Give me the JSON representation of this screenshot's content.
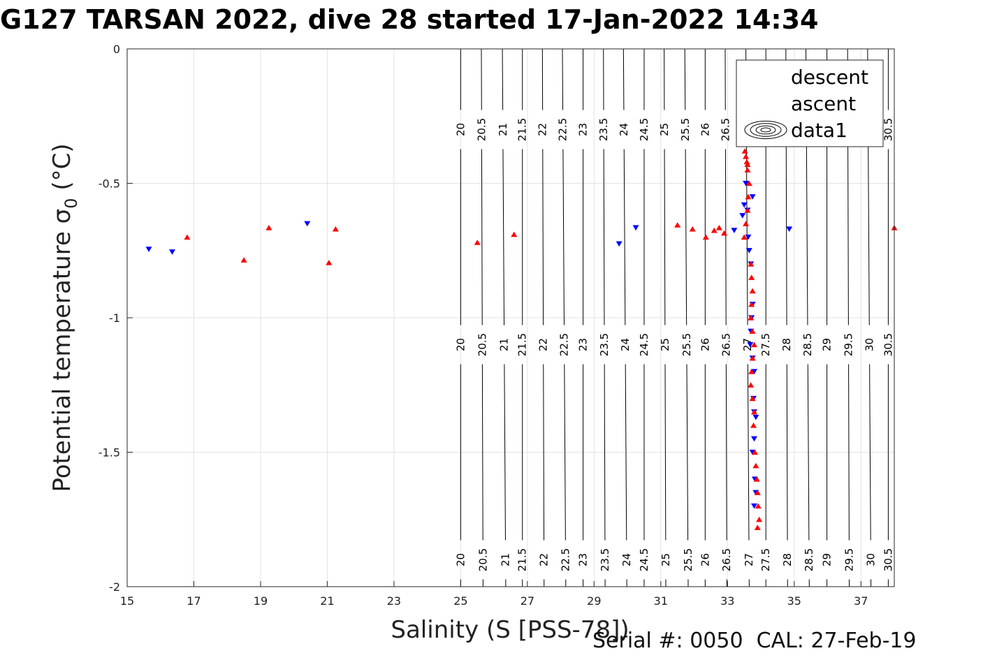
{
  "title": "G127 TARSAN 2022, dive 28 started 17-Jan-2022 14:34",
  "footer": "Serial #: 0050  CAL: 27-Feb-19",
  "chart_data": {
    "type": "scatter",
    "xlabel": "Salinity (S [PSS-78])",
    "ylabel_main": "Potential temperature σ",
    "ylabel_sub": "0",
    "ylabel_unit": " (°C)",
    "xlim": [
      15,
      38
    ],
    "ylim": [
      -2,
      0
    ],
    "xticks": [
      15,
      17,
      19,
      21,
      23,
      25,
      27,
      29,
      31,
      33,
      35,
      37
    ],
    "yticks": [
      0,
      -0.5,
      -1,
      -1.5,
      -2
    ],
    "ytick_labels": [
      "0",
      "-0.5",
      "-1",
      "-1.5",
      "-2"
    ],
    "grid": true,
    "legend_position": "top-right",
    "legend": [
      {
        "label": "descent",
        "marker": "triangle-down",
        "color": "#0000ff"
      },
      {
        "label": "ascent",
        "marker": "triangle-up",
        "color": "#ff0000"
      },
      {
        "label": "data1",
        "marker": "contour",
        "color": "#000000"
      }
    ],
    "contours": {
      "levels": [
        20,
        20.5,
        21,
        21.5,
        22,
        22.5,
        23,
        23.5,
        24,
        24.5,
        25,
        25.5,
        26,
        26.5,
        27,
        27.5,
        28,
        28.5,
        29,
        29.5,
        30,
        30.5
      ],
      "salinity_at_level": [
        25.0,
        25.62,
        26.25,
        26.85,
        27.45,
        28.05,
        28.67,
        29.28,
        29.88,
        30.5,
        31.1,
        31.72,
        32.33,
        32.93,
        33.55,
        34.15,
        34.75,
        35.35,
        35.98,
        36.6,
        37.2,
        37.82
      ],
      "label_rows": [
        -0.3,
        -1.1,
        -1.9
      ],
      "top_row_hidden": [
        27,
        27.5,
        28,
        28.5,
        29,
        29.5,
        30
      ]
    },
    "series": [
      {
        "name": "descent",
        "color": "#0000ff",
        "marker": "triangle-down",
        "x": [
          15.65,
          16.35,
          20.4,
          29.75,
          30.25,
          33.2,
          33.45,
          33.5,
          33.55,
          33.6,
          33.62,
          33.65,
          33.7,
          33.75,
          33.72,
          33.7,
          33.68,
          33.75,
          33.8,
          33.78,
          33.8,
          33.85,
          33.8,
          33.75,
          33.82,
          33.85,
          33.8,
          34.85,
          33.75
        ],
        "y": [
          -0.745,
          -0.755,
          -0.65,
          -0.725,
          -0.665,
          -0.675,
          -0.62,
          -0.58,
          -0.5,
          -0.6,
          -0.7,
          -0.75,
          -0.8,
          -0.95,
          -1.0,
          -1.05,
          -1.1,
          -1.15,
          -1.2,
          -1.3,
          -1.35,
          -1.37,
          -1.45,
          -1.5,
          -1.6,
          -1.65,
          -1.7,
          -0.67,
          -0.55
        ]
      },
      {
        "name": "ascent",
        "color": "#ff0000",
        "marker": "triangle-up",
        "x": [
          16.8,
          18.5,
          19.25,
          21.05,
          21.25,
          25.5,
          26.6,
          31.5,
          31.95,
          32.35,
          32.6,
          32.75,
          32.9,
          33.5,
          33.55,
          33.6,
          33.62,
          33.65,
          33.6,
          33.58,
          33.55,
          33.52,
          33.6,
          33.7,
          33.72,
          33.75,
          33.72,
          33.7,
          33.75,
          33.8,
          33.75,
          33.72,
          33.7,
          33.75,
          33.8,
          33.78,
          33.82,
          33.85,
          33.88,
          33.9,
          33.92,
          33.95,
          33.9,
          38.0
        ],
        "y": [
          -0.7,
          -0.785,
          -0.665,
          -0.795,
          -0.67,
          -0.72,
          -0.69,
          -0.655,
          -0.67,
          -0.7,
          -0.675,
          -0.665,
          -0.685,
          -0.7,
          -0.65,
          -0.6,
          -0.55,
          -0.5,
          -0.45,
          -0.42,
          -0.4,
          -0.38,
          -0.43,
          -0.8,
          -0.85,
          -0.9,
          -0.95,
          -1.0,
          -1.05,
          -1.1,
          -1.15,
          -1.2,
          -1.25,
          -1.3,
          -1.35,
          -1.4,
          -1.5,
          -1.55,
          -1.6,
          -1.65,
          -1.7,
          -1.75,
          -1.78,
          -0.665
        ]
      }
    ]
  }
}
